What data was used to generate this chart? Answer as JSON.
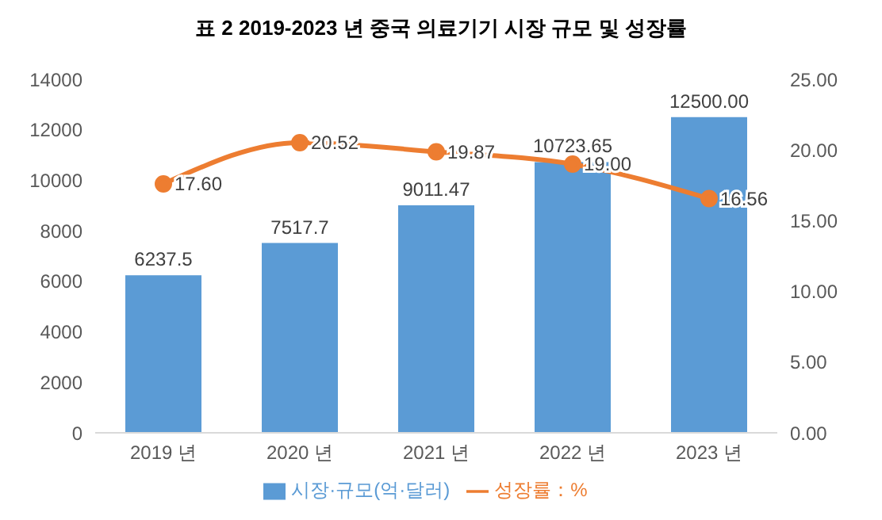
{
  "chart_data": {
    "type": "bar",
    "title": "표 2   2019-2023 년 중국 의료기기 시장 규모 및 성장률",
    "categories": [
      "2019 년",
      "2020 년",
      "2021 년",
      "2022 년",
      "2023 년"
    ],
    "series": [
      {
        "name": "시장·규모(억·달러)",
        "color": "#5b9bd5",
        "values": [
          6237.5,
          7517.7,
          9011.47,
          10723.65,
          12500
        ],
        "value_labels": [
          "6237.5",
          "7517.7",
          "9011.47",
          "10723.65",
          "12500.00"
        ]
      },
      {
        "name": "성장률：%",
        "type": "line",
        "axis": "y2",
        "color": "#ed7d31",
        "values": [
          17.6,
          20.52,
          19.87,
          19.0,
          16.56
        ],
        "value_labels": [
          "17.60",
          "20.52",
          "19.87",
          "19.00",
          "16.56"
        ]
      }
    ],
    "ylim": [
      0,
      14000
    ],
    "yticks": [
      0,
      2000,
      4000,
      6000,
      8000,
      10000,
      12000,
      14000
    ],
    "y2lim": [
      0,
      25
    ],
    "y2ticks": [
      {
        "value": 0,
        "label": "0.00"
      },
      {
        "value": 5,
        "label": "5.00"
      },
      {
        "value": 10,
        "label": "10.00"
      },
      {
        "value": 15,
        "label": "15.00"
      },
      {
        "value": 20,
        "label": "20.00"
      },
      {
        "value": 25,
        "label": "25.00"
      }
    ],
    "legend": "bottom",
    "marker": "circle",
    "line_style": "solid",
    "grid": false
  }
}
